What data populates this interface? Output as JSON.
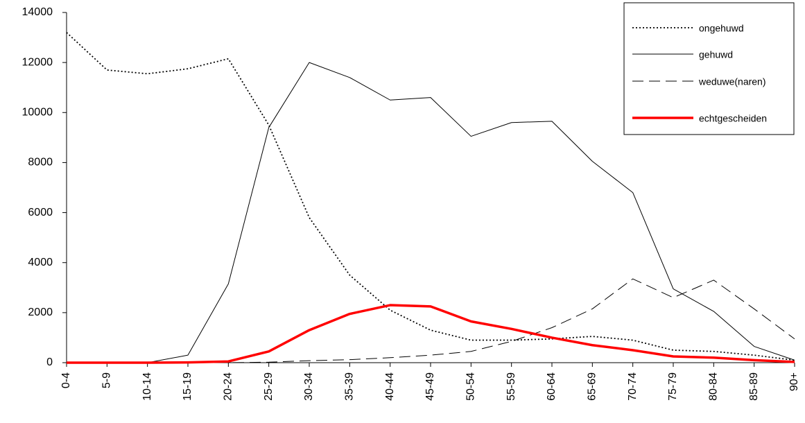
{
  "chart_data": {
    "type": "line",
    "categories": [
      "0-4",
      "5-9",
      "10-14",
      "15-19",
      "20-24",
      "25-29",
      "30-34",
      "35-39",
      "40-44",
      "45-49",
      "50-54",
      "55-59",
      "60-64",
      "65-69",
      "70-74",
      "75-79",
      "80-84",
      "85-89",
      "90+"
    ],
    "series": [
      {
        "name": "ongehuwd",
        "color": "#000000",
        "style": "dotted",
        "values": [
          13200,
          11700,
          11550,
          11750,
          12150,
          9500,
          5800,
          3500,
          2100,
          1300,
          900,
          900,
          950,
          1050,
          900,
          500,
          450,
          300,
          100
        ]
      },
      {
        "name": "gehuwd",
        "color": "#000000",
        "style": "solid",
        "values": [
          0,
          0,
          0,
          300,
          3150,
          9400,
          12000,
          11400,
          10500,
          10600,
          9050,
          9600,
          9650,
          8050,
          6800,
          2950,
          2050,
          650,
          100
        ]
      },
      {
        "name": "weduwe(naren)",
        "color": "#000000",
        "style": "dashed",
        "values": [
          0,
          0,
          0,
          0,
          0,
          20,
          80,
          120,
          200,
          300,
          450,
          850,
          1400,
          2150,
          3350,
          2600,
          3300,
          2150,
          950
        ]
      },
      {
        "name": "echtgescheiden",
        "color": "#ff0000",
        "style": "thick",
        "values": [
          0,
          0,
          0,
          10,
          50,
          450,
          1300,
          1950,
          2300,
          2250,
          1650,
          1350,
          1000,
          700,
          500,
          250,
          200,
          100,
          30
        ]
      }
    ],
    "ylim": [
      0,
      14000
    ],
    "yticks": [
      0,
      2000,
      4000,
      6000,
      8000,
      10000,
      12000,
      14000
    ],
    "grid": false,
    "legend": "top-right"
  }
}
